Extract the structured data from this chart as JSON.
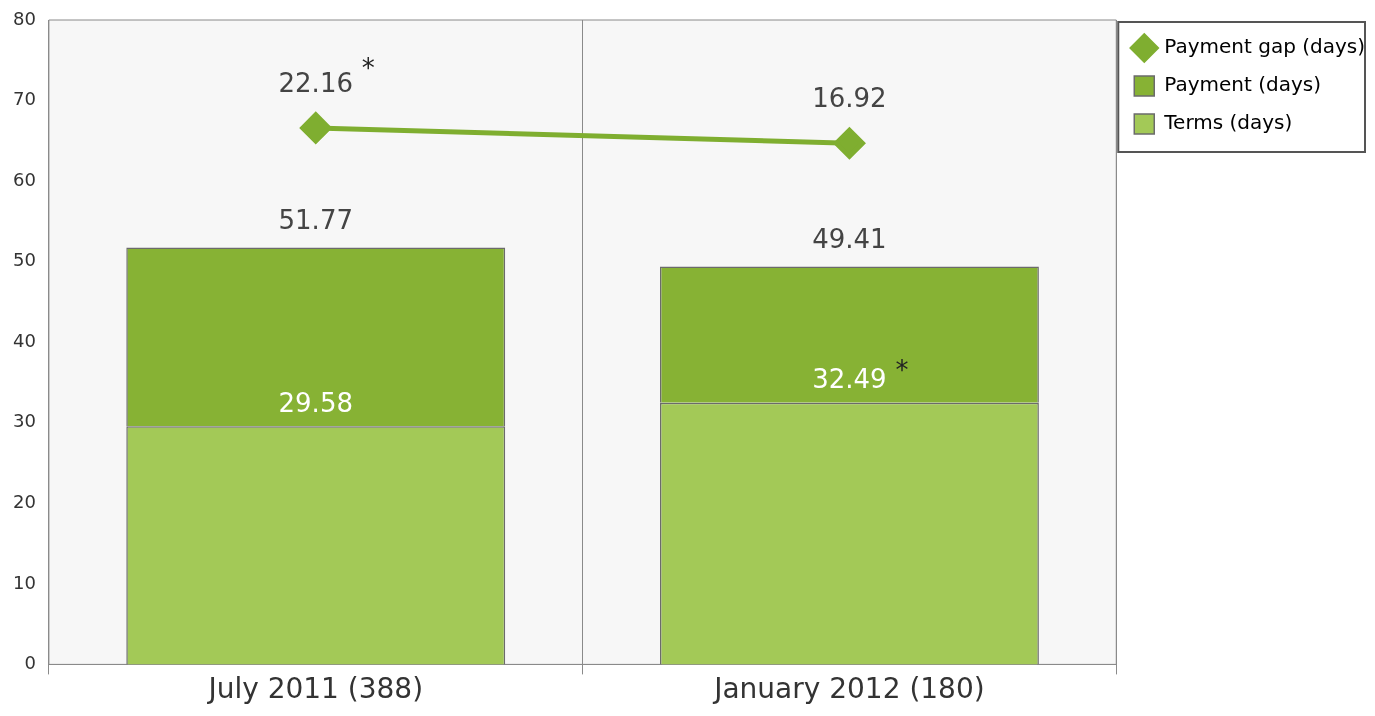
{
  "chart_data": {
    "type": "bar",
    "stacked": true,
    "totals": [
      "51.77",
      "49.41"
    ],
    "categories": [
      "July 2011 (388)",
      "January 2012 (180)"
    ],
    "series": [
      {
        "name": "Terms (days)",
        "color": "#a3c957",
        "values": [
          29.58,
          32.49
        ],
        "value_labels": [
          "29.58",
          "32.49"
        ]
      },
      {
        "name": "Payment (days)",
        "color": "#87b234",
        "values": [
          22.19,
          16.92
        ]
      },
      {
        "name": "Payment gap (days)",
        "type": "line",
        "axis": "y2",
        "color": "#7fae30",
        "marker": "diamond",
        "values": [
          22.16,
          16.92
        ],
        "value_labels": [
          "22.16",
          "16.92"
        ]
      }
    ],
    "ylim": [
      0,
      80
    ],
    "yticks": [
      0,
      10,
      20,
      30,
      40,
      50,
      60,
      70,
      80
    ],
    "y2lim": [
      -161,
      59
    ],
    "grid": "x",
    "legend": "right",
    "annotations": [
      "*",
      "*"
    ]
  }
}
